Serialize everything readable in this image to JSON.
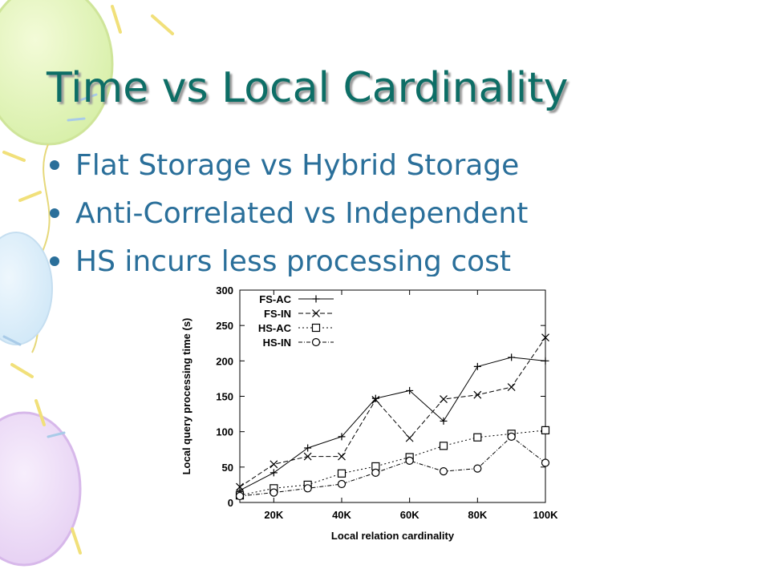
{
  "slide": {
    "title": "Time vs Local Cardinality",
    "bullets": [
      "Flat Storage vs Hybrid Storage",
      "Anti-Correlated vs Independent",
      "HS incurs less processing cost"
    ],
    "title_color": "#0d6e66",
    "bullet_color": "#2a6f9a"
  },
  "chart_data": {
    "type": "line",
    "xlabel": "Local relation cardinality",
    "ylabel": "Local query processing time (s)",
    "xlim": [
      10000,
      100000
    ],
    "ylim": [
      0,
      300
    ],
    "x_ticks": [
      20000,
      40000,
      60000,
      80000,
      100000
    ],
    "x_tick_labels": [
      "20K",
      "40K",
      "60K",
      "80K",
      "100K"
    ],
    "y_ticks": [
      0,
      50,
      100,
      150,
      200,
      250,
      300
    ],
    "y_tick_labels": [
      "0",
      "50",
      "100",
      "150",
      "200",
      "250",
      "300"
    ],
    "grid": false,
    "legend_position": "top-left",
    "x": [
      10000,
      20000,
      30000,
      40000,
      50000,
      60000,
      70000,
      80000,
      90000,
      100000
    ],
    "series": [
      {
        "name": "FS-AC",
        "marker": "plus",
        "dash": "solid",
        "values": [
          17,
          42,
          77,
          93,
          147,
          158,
          115,
          192,
          205,
          200
        ]
      },
      {
        "name": "FS-IN",
        "marker": "cross",
        "dash": "dashed",
        "values": [
          22,
          54,
          65,
          65,
          145,
          91,
          146,
          152,
          163,
          233
        ]
      },
      {
        "name": "HS-AC",
        "marker": "square",
        "dash": "dotted",
        "values": [
          10,
          20,
          25,
          41,
          51,
          64,
          80,
          92,
          97,
          102
        ]
      },
      {
        "name": "HS-IN",
        "marker": "circle",
        "dash": "dash-dot",
        "values": [
          9,
          14,
          20,
          26,
          42,
          59,
          44,
          48,
          93,
          56
        ]
      }
    ]
  }
}
